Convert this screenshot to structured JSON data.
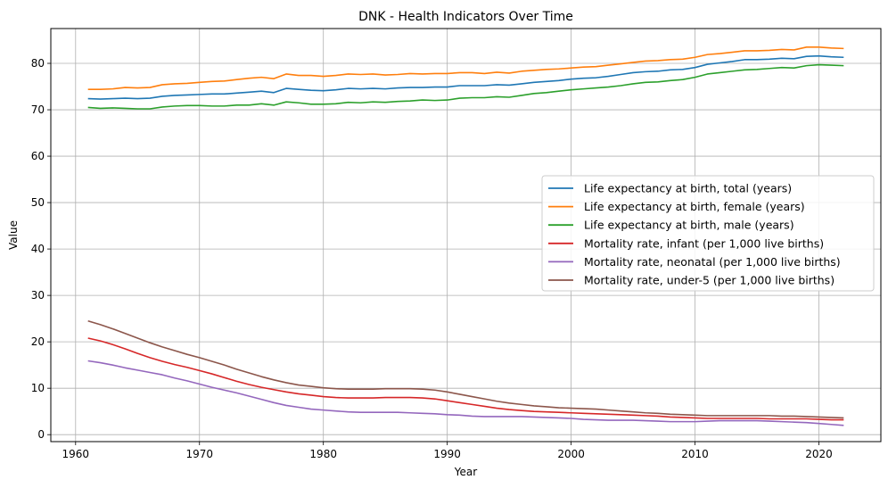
{
  "chart_data": {
    "type": "line",
    "title": "DNK - Health Indicators Over Time",
    "xlabel": "Year",
    "ylabel": "Value",
    "xlim": [
      1958,
      2025
    ],
    "ylim": [
      -1.5,
      87.5
    ],
    "xticks": [
      1960,
      1970,
      1980,
      1990,
      2000,
      2010,
      2020
    ],
    "yticks": [
      0,
      10,
      20,
      30,
      40,
      50,
      60,
      70,
      80
    ],
    "grid": true,
    "legend_position": "center-right",
    "x": [
      1961,
      1962,
      1963,
      1964,
      1965,
      1966,
      1967,
      1968,
      1969,
      1970,
      1971,
      1972,
      1973,
      1974,
      1975,
      1976,
      1977,
      1978,
      1979,
      1980,
      1981,
      1982,
      1983,
      1984,
      1985,
      1986,
      1987,
      1988,
      1989,
      1990,
      1991,
      1992,
      1993,
      1994,
      1995,
      1996,
      1997,
      1998,
      1999,
      2000,
      2001,
      2002,
      2003,
      2004,
      2005,
      2006,
      2007,
      2008,
      2009,
      2010,
      2011,
      2012,
      2013,
      2014,
      2015,
      2016,
      2017,
      2018,
      2019,
      2020,
      2021,
      2022
    ],
    "series": [
      {
        "name": "Life expectancy at birth, total (years)",
        "color": "#1f77b4",
        "values": [
          72.4,
          72.3,
          72.4,
          72.5,
          72.4,
          72.5,
          72.9,
          73.1,
          73.2,
          73.3,
          73.4,
          73.4,
          73.6,
          73.8,
          74.0,
          73.7,
          74.6,
          74.4,
          74.2,
          74.1,
          74.3,
          74.6,
          74.5,
          74.6,
          74.5,
          74.7,
          74.8,
          74.8,
          74.9,
          74.9,
          75.2,
          75.2,
          75.2,
          75.4,
          75.3,
          75.6,
          75.9,
          76.1,
          76.3,
          76.6,
          76.8,
          76.9,
          77.2,
          77.6,
          78.0,
          78.2,
          78.3,
          78.6,
          78.7,
          79.1,
          79.8,
          80.1,
          80.4,
          80.8,
          80.8,
          80.9,
          81.1,
          81.0,
          81.5,
          81.6,
          81.4,
          81.3
        ]
      },
      {
        "name": "Life expectancy at birth, female (years)",
        "color": "#ff7f0e",
        "values": [
          74.4,
          74.4,
          74.5,
          74.8,
          74.7,
          74.8,
          75.4,
          75.6,
          75.7,
          75.9,
          76.1,
          76.2,
          76.5,
          76.8,
          77.0,
          76.7,
          77.7,
          77.4,
          77.4,
          77.2,
          77.4,
          77.7,
          77.6,
          77.7,
          77.5,
          77.6,
          77.8,
          77.7,
          77.8,
          77.8,
          78.0,
          78.0,
          77.8,
          78.1,
          77.9,
          78.3,
          78.5,
          78.7,
          78.8,
          79.0,
          79.2,
          79.3,
          79.6,
          79.9,
          80.2,
          80.5,
          80.6,
          80.8,
          80.9,
          81.3,
          81.9,
          82.1,
          82.4,
          82.7,
          82.7,
          82.8,
          83.0,
          82.9,
          83.5,
          83.5,
          83.3,
          83.2
        ]
      },
      {
        "name": "Life expectancy at birth, male (years)",
        "color": "#2ca02c",
        "values": [
          70.5,
          70.3,
          70.4,
          70.3,
          70.2,
          70.2,
          70.6,
          70.8,
          70.9,
          70.9,
          70.8,
          70.8,
          71.0,
          71.0,
          71.3,
          71.0,
          71.7,
          71.5,
          71.2,
          71.2,
          71.3,
          71.6,
          71.5,
          71.7,
          71.6,
          71.8,
          71.9,
          72.1,
          72.0,
          72.1,
          72.5,
          72.6,
          72.6,
          72.8,
          72.7,
          73.1,
          73.5,
          73.7,
          74.0,
          74.3,
          74.5,
          74.7,
          74.9,
          75.2,
          75.6,
          75.9,
          76.0,
          76.3,
          76.5,
          77.0,
          77.7,
          78.0,
          78.3,
          78.6,
          78.7,
          78.9,
          79.1,
          79.0,
          79.5,
          79.7,
          79.6,
          79.5
        ]
      },
      {
        "name": "Mortality rate, infant (per 1,000 live births)",
        "color": "#d62728",
        "values": [
          20.8,
          20.2,
          19.4,
          18.5,
          17.5,
          16.6,
          15.8,
          15.1,
          14.5,
          13.8,
          13.1,
          12.3,
          11.5,
          10.8,
          10.2,
          9.7,
          9.2,
          8.8,
          8.5,
          8.2,
          8.0,
          7.9,
          7.9,
          7.9,
          8.0,
          8.0,
          8.0,
          7.9,
          7.7,
          7.3,
          6.9,
          6.5,
          6.1,
          5.7,
          5.4,
          5.2,
          5.0,
          4.9,
          4.8,
          4.7,
          4.6,
          4.5,
          4.4,
          4.3,
          4.2,
          4.1,
          4.0,
          3.8,
          3.7,
          3.6,
          3.5,
          3.5,
          3.5,
          3.5,
          3.5,
          3.4,
          3.4,
          3.4,
          3.4,
          3.3,
          3.2,
          3.2
        ]
      },
      {
        "name": "Mortality rate, neonatal (per 1,000 live births)",
        "color": "#9467bd",
        "values": [
          15.9,
          15.5,
          15.0,
          14.4,
          13.9,
          13.4,
          12.9,
          12.2,
          11.6,
          10.9,
          10.2,
          9.6,
          9.0,
          8.3,
          7.6,
          6.9,
          6.3,
          5.9,
          5.5,
          5.3,
          5.1,
          4.9,
          4.8,
          4.8,
          4.8,
          4.8,
          4.7,
          4.6,
          4.5,
          4.3,
          4.2,
          4.0,
          3.9,
          3.9,
          3.9,
          3.9,
          3.8,
          3.7,
          3.6,
          3.5,
          3.3,
          3.2,
          3.1,
          3.1,
          3.1,
          3.0,
          2.9,
          2.8,
          2.8,
          2.8,
          2.9,
          3.0,
          3.0,
          3.0,
          3.0,
          2.9,
          2.8,
          2.7,
          2.6,
          2.4,
          2.2,
          2.0
        ]
      },
      {
        "name": "Mortality rate, under-5 (per 1,000 live births)",
        "color": "#8c564b",
        "values": [
          24.5,
          23.7,
          22.8,
          21.8,
          20.8,
          19.8,
          18.9,
          18.1,
          17.3,
          16.6,
          15.8,
          15.0,
          14.1,
          13.3,
          12.5,
          11.8,
          11.2,
          10.7,
          10.4,
          10.1,
          9.9,
          9.8,
          9.8,
          9.8,
          9.9,
          9.9,
          9.9,
          9.8,
          9.6,
          9.2,
          8.7,
          8.2,
          7.7,
          7.2,
          6.8,
          6.5,
          6.2,
          6.0,
          5.8,
          5.7,
          5.6,
          5.5,
          5.3,
          5.1,
          4.9,
          4.7,
          4.6,
          4.4,
          4.3,
          4.2,
          4.1,
          4.1,
          4.1,
          4.1,
          4.1,
          4.1,
          4.0,
          4.0,
          3.9,
          3.8,
          3.7,
          3.6
        ]
      }
    ]
  }
}
